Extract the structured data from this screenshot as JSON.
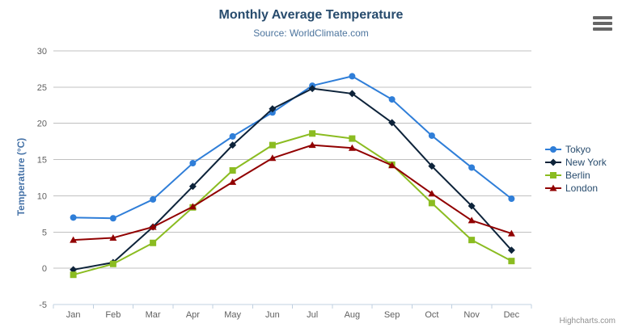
{
  "chart_data": {
    "type": "line",
    "title": "Monthly Average Temperature",
    "subtitle": "Source: WorldClimate.com",
    "xlabel": "",
    "ylabel": "Temperature (°C)",
    "ylim": [
      -5,
      30
    ],
    "ytick_step": 5,
    "grid": true,
    "grid_color": "#c0c0c0",
    "axis_line_color": "#c0d0e0",
    "tick_label_color": "#606060",
    "legend_position": "right-middle",
    "legend_text_color": "#274b6d",
    "categories": [
      "Jan",
      "Feb",
      "Mar",
      "Apr",
      "May",
      "Jun",
      "Jul",
      "Aug",
      "Sep",
      "Oct",
      "Nov",
      "Dec"
    ],
    "series": [
      {
        "name": "Tokyo",
        "color": "#2f7ed8",
        "marker": "circle",
        "values": [
          7.0,
          6.9,
          9.5,
          14.5,
          18.2,
          21.5,
          25.2,
          26.5,
          23.3,
          18.3,
          13.9,
          9.6
        ]
      },
      {
        "name": "New York",
        "color": "#0d233a",
        "marker": "diamond",
        "values": [
          -0.2,
          0.8,
          5.7,
          11.3,
          17.0,
          22.0,
          24.8,
          24.1,
          20.1,
          14.1,
          8.6,
          2.5
        ]
      },
      {
        "name": "Berlin",
        "color": "#8bbc21",
        "marker": "square",
        "values": [
          -0.9,
          0.6,
          3.5,
          8.4,
          13.5,
          17.0,
          18.6,
          17.9,
          14.3,
          9.0,
          3.9,
          1.0
        ]
      },
      {
        "name": "London",
        "color": "#910000",
        "marker": "triangle",
        "values": [
          3.9,
          4.2,
          5.7,
          8.5,
          11.9,
          15.2,
          17.0,
          16.6,
          14.2,
          10.3,
          6.6,
          4.8
        ]
      }
    ]
  },
  "credits": {
    "label": "Highcharts.com"
  },
  "export_menu": {
    "icon_name": "hamburger-icon"
  }
}
